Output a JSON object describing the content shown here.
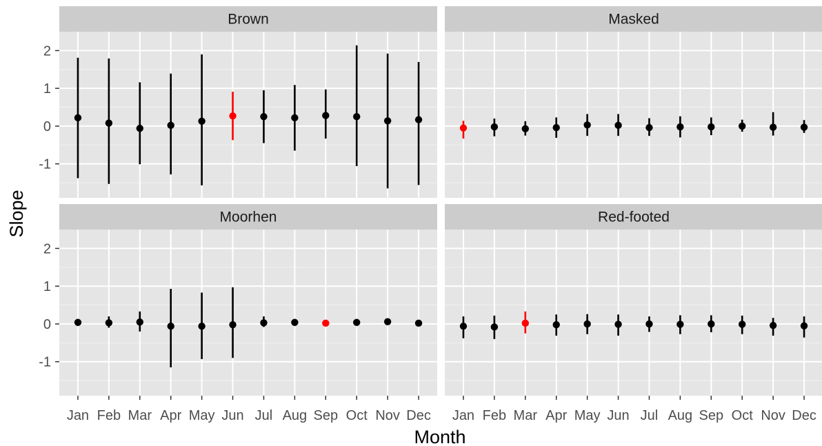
{
  "chart_data": {
    "type": "scatter",
    "subtype": "point-range (estimate with interval), faceted 2x2",
    "xlabel": "Month",
    "ylabel": "Slope",
    "categories": [
      "Jan",
      "Feb",
      "Mar",
      "Apr",
      "May",
      "Jun",
      "Jul",
      "Aug",
      "Sep",
      "Oct",
      "Nov",
      "Dec"
    ],
    "ylim": [
      -1.9,
      2.5
    ],
    "yticks": [
      -1,
      0,
      1,
      2
    ],
    "grid": true,
    "legend": "none",
    "colors": {
      "normal": "#000000",
      "highlight": "#ff0000",
      "panel_bg": "#e5e5e5",
      "strip_bg": "#cccccc",
      "grid": "#ffffff"
    },
    "facets": [
      {
        "name": "Brown",
        "estimate": [
          0.22,
          0.08,
          -0.06,
          0.02,
          0.13,
          0.27,
          0.25,
          0.22,
          0.28,
          0.25,
          0.14,
          0.17
        ],
        "lower": [
          -1.38,
          -1.53,
          -1.01,
          -1.28,
          -1.57,
          -0.37,
          -0.45,
          -0.65,
          -0.33,
          -1.06,
          -1.65,
          -1.56
        ],
        "upper": [
          1.81,
          1.79,
          1.16,
          1.39,
          1.9,
          0.91,
          0.95,
          1.09,
          0.97,
          2.14,
          1.92,
          1.7
        ],
        "highlight": "Jun"
      },
      {
        "name": "Masked",
        "estimate": [
          -0.05,
          -0.02,
          -0.07,
          -0.04,
          0.03,
          0.02,
          -0.04,
          -0.02,
          -0.02,
          0.0,
          -0.03,
          -0.03
        ],
        "lower": [
          -0.33,
          -0.27,
          -0.25,
          -0.31,
          -0.26,
          -0.26,
          -0.26,
          -0.3,
          -0.24,
          -0.15,
          -0.25,
          -0.18
        ],
        "upper": [
          0.14,
          0.2,
          0.13,
          0.23,
          0.32,
          0.32,
          0.21,
          0.26,
          0.23,
          0.17,
          0.37,
          0.16
        ],
        "highlight": "Jan"
      },
      {
        "name": "Moorhen",
        "estimate": [
          0.04,
          0.03,
          0.05,
          -0.06,
          -0.06,
          -0.02,
          0.03,
          0.04,
          0.02,
          0.04,
          0.06,
          0.02
        ],
        "lower": [
          -0.05,
          -0.1,
          -0.2,
          -1.15,
          -0.93,
          -0.9,
          -0.08,
          -0.03,
          -0.02,
          0.01,
          0.0,
          -0.02
        ],
        "upper": [
          0.13,
          0.2,
          0.33,
          0.93,
          0.83,
          0.97,
          0.2,
          0.11,
          0.06,
          0.08,
          0.12,
          0.06
        ],
        "highlight": "Sep"
      },
      {
        "name": "Red-footed",
        "estimate": [
          -0.06,
          -0.08,
          0.02,
          -0.02,
          0.0,
          -0.01,
          0.0,
          -0.01,
          0.0,
          -0.01,
          -0.04,
          -0.05
        ],
        "lower": [
          -0.38,
          -0.4,
          -0.25,
          -0.31,
          -0.27,
          -0.31,
          -0.21,
          -0.27,
          -0.22,
          -0.27,
          -0.31,
          -0.36
        ],
        "upper": [
          0.2,
          0.22,
          0.33,
          0.25,
          0.26,
          0.25,
          0.2,
          0.23,
          0.23,
          0.22,
          0.16,
          0.2
        ],
        "highlight": "Mar"
      }
    ]
  }
}
